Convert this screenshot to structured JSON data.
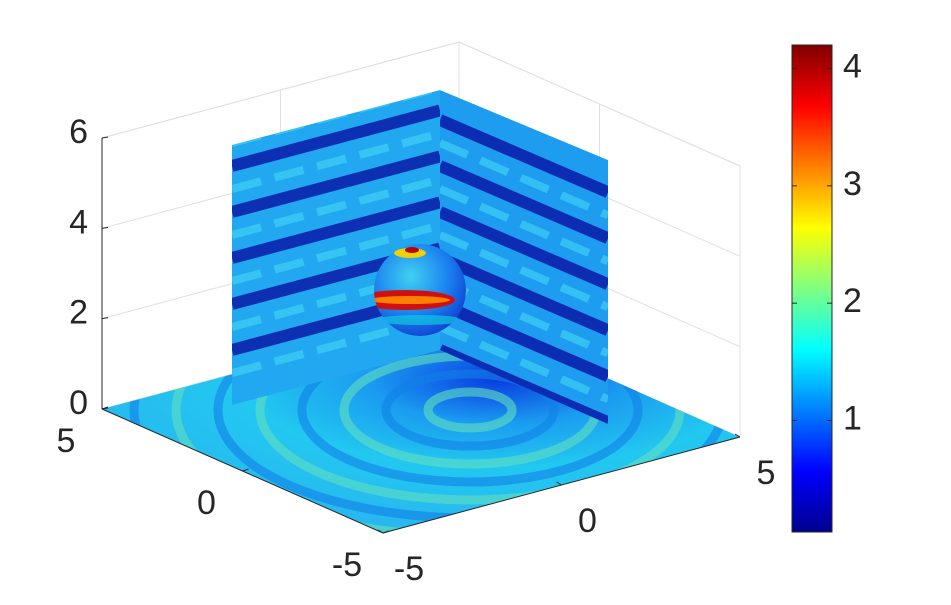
{
  "chart_data": {
    "type": "slice3d",
    "xlim": [
      -5,
      5
    ],
    "xticks": [
      -5,
      0,
      5
    ],
    "ylim": [
      -5,
      5
    ],
    "yticks": [
      -5,
      0,
      5
    ],
    "zlim": [
      0,
      6
    ],
    "zticks": [
      0,
      2,
      4,
      6
    ],
    "grid": true,
    "colormap": "jet",
    "clim": [
      0.05,
      4.2
    ],
    "colorbar_ticks": [
      1,
      2,
      3,
      4
    ]
  }
}
